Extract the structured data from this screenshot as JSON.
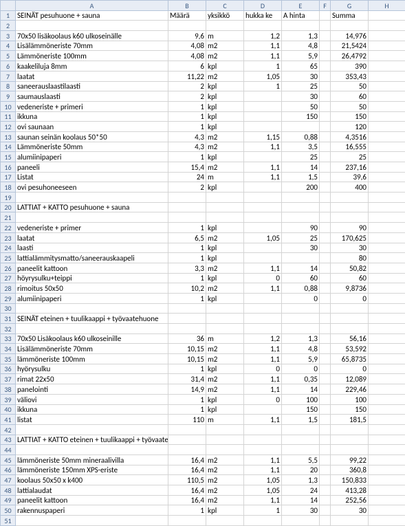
{
  "columns": [
    "A",
    "B",
    "C",
    "D",
    "E",
    "F",
    "G",
    "H"
  ],
  "headers": {
    "A": "",
    "B": "Määrä",
    "C": "yksikkö",
    "D": "hukka ke",
    "E": "A hinta",
    "F": "",
    "G": "Summa",
    "H": ""
  },
  "rows": [
    {
      "n": 1,
      "a": "SEINÄT pesuhuone + sauna",
      "b": "Määrä",
      "c": "yksikkö",
      "d": "hukka ke",
      "e": "A hinta",
      "g": "Summa",
      "header": true
    },
    {
      "n": 2
    },
    {
      "n": 3,
      "a": "70x50 lisäkoolaus k60 ulkoseinälle",
      "b": "9,6",
      "c": "m",
      "d": "1,2",
      "e": "1,3",
      "g": "14,976"
    },
    {
      "n": 4,
      "a": "Lisälämmöneriste 70mm",
      "b": "4,08",
      "c": "m2",
      "d": "1,1",
      "e": "4,8",
      "g": "21,5424"
    },
    {
      "n": 5,
      "a": "Lämmöneriste 100mm",
      "b": "4,08",
      "c": "m2",
      "d": "1,1",
      "e": "5,9",
      "g": "26,4792"
    },
    {
      "n": 6,
      "a": "kaakeliluja 8mm",
      "b": "6",
      "c": "kpl",
      "d": "1",
      "e": "65",
      "g": "390"
    },
    {
      "n": 7,
      "a": "laatat",
      "b": "11,22",
      "c": "m2",
      "d": "1,05",
      "e": "30",
      "g": "353,43"
    },
    {
      "n": 8,
      "a": "saneerauslaastilaasti",
      "b": "2",
      "c": "kpl",
      "d": "1",
      "e": "25",
      "g": "50"
    },
    {
      "n": 9,
      "a": "saumauslaasti",
      "b": "2",
      "c": "kpl",
      "e": "30",
      "g": "60"
    },
    {
      "n": 10,
      "a": "vedeneriste + primeri",
      "b": "1",
      "c": "kpl",
      "e": "50",
      "g": "50"
    },
    {
      "n": 11,
      "a": "ikkuna",
      "b": "1",
      "c": "kpl",
      "e": "150",
      "g": "150"
    },
    {
      "n": 12,
      "a": "ovi saunaan",
      "b": "1",
      "c": "kpl",
      "g": "120"
    },
    {
      "n": 13,
      "a": "saunan seinän koolaus 50*50",
      "b": "4,3",
      "c": "m2",
      "d": "1,15",
      "e": "0,88",
      "g": "4,3516"
    },
    {
      "n": 14,
      "a": "Lämmöneriste 50mm",
      "b": "4,3",
      "c": "m2",
      "d": "1,1",
      "e": "3,5",
      "g": "16,555"
    },
    {
      "n": 15,
      "a": "alumiinipaperi",
      "b": "1",
      "c": "kpl",
      "e": "25",
      "g": "25"
    },
    {
      "n": 16,
      "a": "paneeli",
      "b": "15,4",
      "c": "m2",
      "d": "1,1",
      "e": "14",
      "g": "237,16"
    },
    {
      "n": 17,
      "a": "Listat",
      "b": "24",
      "c": "m",
      "d": "1,1",
      "e": "1,5",
      "g": "39,6"
    },
    {
      "n": 18,
      "a": "ovi pesuhoneeseen",
      "b": "2",
      "c": "kpl",
      "e": "200",
      "g": "400"
    },
    {
      "n": 19
    },
    {
      "n": 20,
      "a": "LATTIAT + KATTO pesuhuone + sauna"
    },
    {
      "n": 21
    },
    {
      "n": 22,
      "a": "vedeneriste + primer",
      "b": "1",
      "c": "kpl",
      "e": "90",
      "g": "90"
    },
    {
      "n": 23,
      "a": "laatat",
      "b": "6,5",
      "c": "m2",
      "d": "1,05",
      "e": "25",
      "g": "170,625"
    },
    {
      "n": 24,
      "a": "laasti",
      "b": "1",
      "c": "kpl",
      "e": "30",
      "g": "30"
    },
    {
      "n": 25,
      "a": "lattialämmitysmatto/saneerauskaapeli",
      "b": "1",
      "c": "kpl",
      "g": "80"
    },
    {
      "n": 26,
      "a": "paneelit kattoon",
      "b": "3,3",
      "c": "m2",
      "d": "1,1",
      "e": "14",
      "g": "50,82"
    },
    {
      "n": 27,
      "a": "höyrysulku+teippi",
      "b": "1",
      "c": "kpl",
      "d": "0",
      "e": "60",
      "g": "60"
    },
    {
      "n": 28,
      "a": "rimoitus 50x50",
      "b": "10,2",
      "c": "m2",
      "d": "1,1",
      "e": "0,88",
      "g": "9,8736"
    },
    {
      "n": 29,
      "a": "alumiinipaperi",
      "b": "1",
      "c": "kpl",
      "e": "0",
      "g": "0"
    },
    {
      "n": 30
    },
    {
      "n": 31,
      "a": "SEINÄT eteinen + tuulikaappi + työvaatehuone"
    },
    {
      "n": 32
    },
    {
      "n": 33,
      "a": "70x50 Lisäkoolaus k60 ulkoseinille",
      "b": "36",
      "c": "m",
      "d": "1,2",
      "e": "1,3",
      "g": "56,16"
    },
    {
      "n": 34,
      "a": "Lisälämmöneriste 70mm",
      "b": "10,15",
      "c": "m2",
      "d": "1,1",
      "e": "4,8",
      "g": "53,592"
    },
    {
      "n": 35,
      "a": "lämmöneriste 100mm",
      "b": "10,15",
      "c": "m2",
      "d": "1,1",
      "e": "5,9",
      "g": "65,8735"
    },
    {
      "n": 36,
      "a": "hyörysulku",
      "b": "1",
      "c": "kpl",
      "d": "0",
      "e": "0",
      "g": "0"
    },
    {
      "n": 37,
      "a": "rimat 22x50",
      "b": "31,4",
      "c": "m2",
      "d": "1,1",
      "e": "0,35",
      "g": "12,089"
    },
    {
      "n": 38,
      "a": "panelointi",
      "b": "14,9",
      "c": "m2",
      "d": "1,1",
      "e": "14",
      "g": "229,46"
    },
    {
      "n": 39,
      "a": "väliovi",
      "b": "1",
      "c": "kpl",
      "d": "0",
      "e": "100",
      "g": "100"
    },
    {
      "n": 40,
      "a": "ikkuna",
      "b": "1",
      "c": "kpl",
      "e": "150",
      "g": "150"
    },
    {
      "n": 41,
      "a": "listat",
      "b": "110",
      "c": "m",
      "d": "1,1",
      "e": "1,5",
      "g": "181,5"
    },
    {
      "n": 42
    },
    {
      "n": 43,
      "a": "LATTIAT + KATTO eteinen + tuulikaappi + työvaatehuone"
    },
    {
      "n": 44
    },
    {
      "n": 45,
      "a": "lämmöneriste 50mm mineraalivilla",
      "b": "16,4",
      "c": "m2",
      "d": "1,1",
      "e": "5,5",
      "g": "99,22"
    },
    {
      "n": 46,
      "a": "lämmöneriste 150mm XPS-eriste",
      "b": "16,4",
      "c": "m2",
      "d": "1,1",
      "e": "20",
      "g": "360,8"
    },
    {
      "n": 47,
      "a": "koolaus 50x50 x k400",
      "b": "110,5",
      "c": "m2",
      "d": "1,05",
      "e": "1,3",
      "g": "150,833"
    },
    {
      "n": 48,
      "a": "lattialaudat",
      "b": "16,4",
      "c": "m2",
      "d": "1,05",
      "e": "24",
      "g": "413,28"
    },
    {
      "n": 49,
      "a": "paneelit kattoon",
      "b": "16,4",
      "c": "m2",
      "d": "1,1",
      "e": "14",
      "g": "252,56"
    },
    {
      "n": 50,
      "a": "rakennuspaperi",
      "b": "1",
      "c": "kpl",
      "d": "1",
      "e": "30",
      "g": "30"
    },
    {
      "n": 51
    }
  ]
}
